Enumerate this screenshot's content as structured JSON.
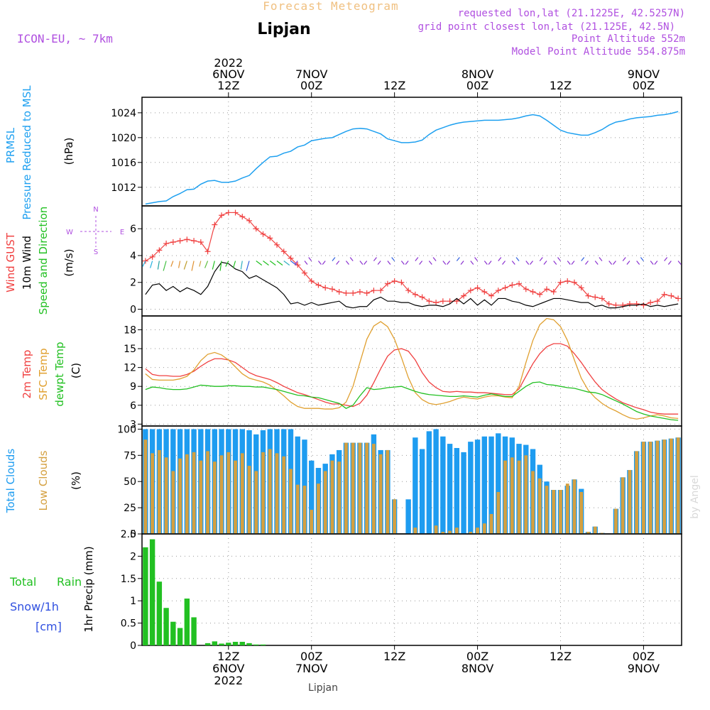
{
  "header": {
    "title": "Forecast Meteogram",
    "location": "Lipjan",
    "model": "ICON-EU, ~ 7km",
    "requested": "requested lon,lat (21.1225E, 42.5257N)",
    "gridpoint": "grid point closest lon,lat (21.125E, 42.5N)",
    "point_alt": "Point Altitude 552m",
    "model_alt": "Model Point Altitude 554.875m",
    "credit": "by Angel",
    "footer_location": "Lipjan"
  },
  "colors": {
    "pressure": "#1ea0f0",
    "gust": "#f04040",
    "wind": "#000000",
    "dir": "#22c022",
    "t2m": "#f04040",
    "sfc": "#e0a030",
    "dew": "#22c022",
    "total_clouds": "#1e9cf0",
    "low_clouds": "#d4a040",
    "rain": "#22c022",
    "snow": "#3050e0",
    "compass": "#b050e0",
    "title": "#f0c080",
    "label_purple": "#b050e0"
  },
  "time_axis": {
    "top_labels": [
      {
        "x": 12,
        "lines": [
          "2022",
          "6NOV",
          "12Z"
        ]
      },
      {
        "x": 24,
        "lines": [
          "7NOV",
          "00Z"
        ]
      },
      {
        "x": 36,
        "lines": [
          "12Z"
        ]
      },
      {
        "x": 48,
        "lines": [
          "8NOV",
          "00Z"
        ]
      },
      {
        "x": 60,
        "lines": [
          "12Z"
        ]
      },
      {
        "x": 72,
        "lines": [
          "9NOV",
          "00Z"
        ]
      }
    ],
    "bottom_labels": [
      {
        "x": 12,
        "lines": [
          "12Z",
          "6NOV",
          "2022"
        ]
      },
      {
        "x": 24,
        "lines": [
          "00Z",
          "7NOV"
        ]
      },
      {
        "x": 36,
        "lines": [
          "12Z"
        ]
      },
      {
        "x": 48,
        "lines": [
          "00Z",
          "8NOV"
        ]
      },
      {
        "x": 60,
        "lines": [
          "12Z"
        ]
      },
      {
        "x": 72,
        "lines": [
          "00Z",
          "9NOV"
        ]
      }
    ],
    "x_range": [
      -0.5,
      77.5
    ]
  },
  "chart_data": [
    {
      "type": "line",
      "panel": "pressure",
      "ylabel_lines": [
        "PRMSL",
        "Pressure Reduced to MSL"
      ],
      "unit": "(hPa)",
      "ylim": [
        1009,
        1026.5
      ],
      "yticks": [
        1012,
        1016,
        1020,
        1024
      ],
      "x": [
        0,
        1,
        2,
        3,
        4,
        5,
        6,
        7,
        8,
        9,
        10,
        11,
        12,
        13,
        14,
        15,
        16,
        17,
        18,
        19,
        20,
        21,
        22,
        23,
        24,
        25,
        26,
        27,
        28,
        29,
        30,
        31,
        32,
        33,
        34,
        35,
        36,
        37,
        38,
        39,
        40,
        41,
        42,
        43,
        44,
        45,
        46,
        47,
        48,
        49,
        50,
        51,
        52,
        53,
        54,
        55,
        56,
        57,
        58,
        59,
        60,
        61,
        62,
        63,
        64,
        65,
        66,
        67,
        68,
        69,
        70,
        71,
        72,
        73,
        74,
        75,
        76,
        77
      ],
      "values": [
        1009.3,
        1009.5,
        1009.7,
        1009.8,
        1010.5,
        1011.0,
        1011.6,
        1011.7,
        1012.5,
        1013.0,
        1013.1,
        1012.8,
        1012.8,
        1013.0,
        1013.5,
        1013.9,
        1015.0,
        1016.0,
        1016.9,
        1017.0,
        1017.5,
        1017.8,
        1018.5,
        1018.8,
        1019.5,
        1019.7,
        1019.9,
        1020.0,
        1020.5,
        1021.0,
        1021.4,
        1021.5,
        1021.4,
        1021.0,
        1020.6,
        1019.8,
        1019.5,
        1019.2,
        1019.2,
        1019.3,
        1019.6,
        1020.5,
        1021.2,
        1021.6,
        1022.0,
        1022.3,
        1022.5,
        1022.6,
        1022.7,
        1022.8,
        1022.8,
        1022.8,
        1022.9,
        1023.0,
        1023.2,
        1023.5,
        1023.7,
        1023.5,
        1022.8,
        1022.0,
        1021.2,
        1020.8,
        1020.6,
        1020.4,
        1020.4,
        1020.8,
        1021.3,
        1022.0,
        1022.5,
        1022.7,
        1023.0,
        1023.2,
        1023.3,
        1023.4,
        1023.6,
        1023.7,
        1023.9,
        1024.2
      ]
    },
    {
      "type": "line",
      "panel": "wind",
      "ylabel_lines": [
        "Wind GUST",
        "10m Wind",
        "Speed and Direction"
      ],
      "unit": "(m/s)",
      "ylim": [
        -0.5,
        7.7
      ],
      "yticks": [
        0,
        2,
        4,
        6
      ],
      "compass": {
        "n": "N",
        "s": "S",
        "w": "W",
        "e": "E"
      },
      "series": [
        {
          "name": "Wind GUST",
          "values": [
            3.6,
            3.9,
            4.4,
            4.9,
            5.0,
            5.1,
            5.2,
            5.1,
            5.0,
            4.3,
            6.3,
            7.0,
            7.2,
            7.2,
            6.9,
            6.6,
            6.0,
            5.6,
            5.3,
            4.8,
            4.3,
            3.8,
            3.3,
            2.7,
            2.1,
            1.8,
            1.6,
            1.5,
            1.3,
            1.2,
            1.2,
            1.3,
            1.2,
            1.4,
            1.4,
            1.9,
            2.1,
            2.0,
            1.4,
            1.1,
            0.9,
            0.6,
            0.5,
            0.6,
            0.6,
            0.6,
            1.0,
            1.4,
            1.6,
            1.3,
            1.0,
            1.4,
            1.6,
            1.8,
            1.9,
            1.5,
            1.3,
            1.1,
            1.5,
            1.3,
            2.0,
            2.1,
            2.0,
            1.6,
            1.0,
            0.9,
            0.8,
            0.4,
            0.3,
            0.3,
            0.4,
            0.4,
            0.3,
            0.5,
            0.6,
            1.1,
            1.0,
            0.8
          ]
        },
        {
          "name": "10m Wind",
          "values": [
            1.1,
            1.8,
            1.9,
            1.4,
            1.7,
            1.3,
            1.6,
            1.4,
            1.1,
            1.7,
            2.8,
            3.5,
            3.4,
            3.0,
            2.8,
            2.3,
            2.5,
            2.2,
            1.9,
            1.6,
            1.1,
            0.4,
            0.5,
            0.3,
            0.5,
            0.3,
            0.4,
            0.5,
            0.6,
            0.2,
            0.1,
            0.2,
            0.2,
            0.7,
            0.9,
            0.6,
            0.6,
            0.5,
            0.5,
            0.3,
            0.2,
            0.3,
            0.3,
            0.2,
            0.4,
            0.8,
            0.4,
            0.8,
            0.3,
            0.7,
            0.3,
            0.8,
            0.8,
            0.6,
            0.5,
            0.3,
            0.2,
            0.4,
            0.6,
            0.8,
            0.8,
            0.7,
            0.6,
            0.5,
            0.5,
            0.2,
            0.3,
            0.1,
            0.1,
            0.2,
            0.3,
            0.3,
            0.4,
            0.2,
            0.3,
            0.2,
            0.3,
            0.4
          ]
        }
      ]
    },
    {
      "type": "line",
      "panel": "temperature",
      "ylabel_lines": [
        "2m Temp",
        "SFC Temp",
        "dewpt Temp"
      ],
      "unit": "(C)",
      "ylim": [
        2.7,
        20.2
      ],
      "yticks": [
        3,
        6,
        9,
        12,
        15,
        18
      ],
      "series": [
        {
          "name": "2m Temp",
          "values": [
            11.8,
            10.9,
            10.7,
            10.7,
            10.6,
            10.6,
            10.9,
            11.4,
            12.2,
            12.9,
            13.4,
            13.4,
            13.2,
            12.8,
            12.0,
            11.2,
            10.7,
            10.4,
            10.1,
            9.6,
            9.0,
            8.5,
            8.0,
            7.7,
            7.3,
            6.9,
            6.5,
            6.2,
            6.2,
            6.0,
            5.8,
            6.3,
            7.6,
            9.6,
            11.8,
            13.8,
            14.8,
            15.0,
            14.6,
            13.2,
            11.2,
            9.7,
            8.8,
            8.2,
            8.1,
            8.2,
            8.1,
            8.1,
            8.0,
            8.0,
            7.9,
            7.8,
            7.7,
            7.7,
            8.6,
            10.6,
            12.6,
            14.2,
            15.3,
            15.8,
            15.8,
            15.4,
            14.2,
            12.8,
            11.2,
            9.7,
            8.5,
            7.7,
            7.0,
            6.4,
            6.0,
            5.6,
            5.3,
            4.9,
            4.7,
            4.6,
            4.6,
            4.6
          ]
        },
        {
          "name": "SFC Temp",
          "values": [
            11.0,
            10.1,
            10.0,
            10.0,
            10.0,
            10.2,
            10.6,
            11.6,
            13.1,
            14.1,
            14.4,
            14.0,
            13.2,
            12.1,
            11.0,
            10.3,
            10.0,
            9.7,
            9.2,
            8.4,
            7.5,
            6.5,
            5.8,
            5.5,
            5.5,
            5.5,
            5.4,
            5.4,
            5.6,
            6.5,
            9.0,
            12.8,
            16.5,
            18.6,
            19.3,
            18.5,
            16.5,
            13.6,
            10.4,
            8.0,
            6.9,
            6.3,
            6.1,
            6.3,
            6.6,
            7.0,
            7.3,
            7.1,
            7.0,
            7.3,
            7.5,
            7.5,
            7.3,
            7.2,
            9.0,
            12.8,
            16.3,
            18.8,
            19.8,
            19.6,
            18.5,
            16.3,
            13.2,
            10.3,
            8.4,
            7.2,
            6.3,
            5.6,
            5.1,
            4.5,
            4.0,
            3.8,
            4.0,
            4.3,
            4.5,
            4.3,
            4.0,
            3.9
          ]
        },
        {
          "name": "dewpt Temp",
          "values": [
            8.5,
            8.9,
            8.8,
            8.6,
            8.5,
            8.5,
            8.6,
            8.9,
            9.2,
            9.1,
            9.0,
            9.0,
            9.1,
            9.1,
            9.0,
            9.0,
            8.9,
            8.9,
            8.7,
            8.5,
            8.2,
            7.9,
            7.6,
            7.5,
            7.3,
            7.2,
            6.9,
            6.6,
            6.3,
            5.5,
            6.0,
            7.5,
            8.8,
            8.5,
            8.6,
            8.8,
            8.9,
            9.0,
            8.6,
            8.2,
            7.9,
            7.7,
            7.6,
            7.5,
            7.4,
            7.4,
            7.5,
            7.4,
            7.3,
            7.6,
            7.8,
            7.6,
            7.4,
            7.4,
            8.2,
            9.0,
            9.6,
            9.7,
            9.3,
            9.2,
            9.0,
            8.8,
            8.7,
            8.4,
            8.1,
            8.0,
            7.7,
            7.2,
            6.7,
            6.2,
            5.6,
            5.0,
            4.6,
            4.3,
            4.1,
            3.9,
            3.7,
            3.6
          ]
        }
      ]
    },
    {
      "type": "bar",
      "panel": "clouds",
      "ylabel_lines": [
        "Total Clouds",
        "Low Clouds"
      ],
      "unit": "(%)",
      "ylim": [
        0,
        103
      ],
      "yticks": [
        0,
        25,
        50,
        75,
        100
      ],
      "series": [
        {
          "name": "Total Clouds",
          "values": [
            100,
            100,
            100,
            100,
            100,
            100,
            100,
            100,
            100,
            100,
            100,
            100,
            100,
            100,
            100,
            99,
            95,
            99,
            100,
            100,
            100,
            100,
            93,
            90,
            70,
            63,
            67,
            76,
            80,
            87,
            87,
            87,
            87,
            95,
            80,
            80,
            33,
            0,
            33,
            92,
            81,
            98,
            100,
            93,
            86,
            82,
            78,
            88,
            90,
            93,
            93,
            96,
            93,
            92,
            86,
            85,
            81,
            66,
            50,
            42,
            42,
            46,
            52,
            43,
            2,
            7,
            1,
            0,
            24,
            54,
            61,
            79,
            88,
            88,
            89,
            90,
            91,
            92
          ]
        },
        {
          "name": "Low Clouds",
          "values": [
            90,
            77,
            80,
            73,
            60,
            72,
            76,
            78,
            70,
            79,
            69,
            75,
            78,
            70,
            77,
            65,
            60,
            78,
            81,
            77,
            74,
            62,
            47,
            46,
            23,
            48,
            60,
            70,
            69,
            87,
            87,
            87,
            87,
            86,
            76,
            80,
            33,
            0,
            0,
            6,
            0,
            0,
            8,
            2,
            3,
            6,
            0,
            2,
            6,
            10,
            19,
            40,
            70,
            73,
            70,
            75,
            60,
            53,
            46,
            42,
            42,
            48,
            52,
            40,
            2,
            7,
            1,
            0,
            24,
            54,
            61,
            79,
            88,
            88,
            89,
            90,
            91,
            92
          ]
        }
      ]
    },
    {
      "type": "bar",
      "panel": "precip",
      "ylabel": "1hr Precip (mm)",
      "labels": {
        "total": "Total",
        "rain": "Rain",
        "snow": "Snow/1h",
        "cm": "[cm]"
      },
      "ylim": [
        0,
        2.5
      ],
      "yticks": [
        0,
        0.5,
        1,
        1.5,
        2,
        2.5
      ],
      "ytick_labels": [
        "0",
        "0.5",
        "1",
        "1.5",
        "2",
        "2.5"
      ],
      "series": [
        {
          "name": "Rain",
          "values": [
            2.2,
            2.38,
            1.43,
            0.84,
            0.53,
            0.39,
            1.05,
            0.63,
            0,
            0.05,
            0.09,
            0.04,
            0.06,
            0.08,
            0.08,
            0.05,
            0.02,
            0.02,
            0,
            0,
            0,
            0,
            0,
            0,
            0,
            0,
            0,
            0,
            0,
            0,
            0,
            0,
            0,
            0,
            0,
            0,
            0,
            0,
            0,
            0,
            0,
            0,
            0,
            0,
            0,
            0,
            0,
            0,
            0,
            0,
            0,
            0,
            0,
            0,
            0,
            0,
            0,
            0,
            0,
            0,
            0,
            0,
            0,
            0,
            0,
            0,
            0,
            0,
            0,
            0,
            0,
            0,
            0,
            0,
            0,
            0,
            0,
            0
          ]
        }
      ]
    }
  ]
}
